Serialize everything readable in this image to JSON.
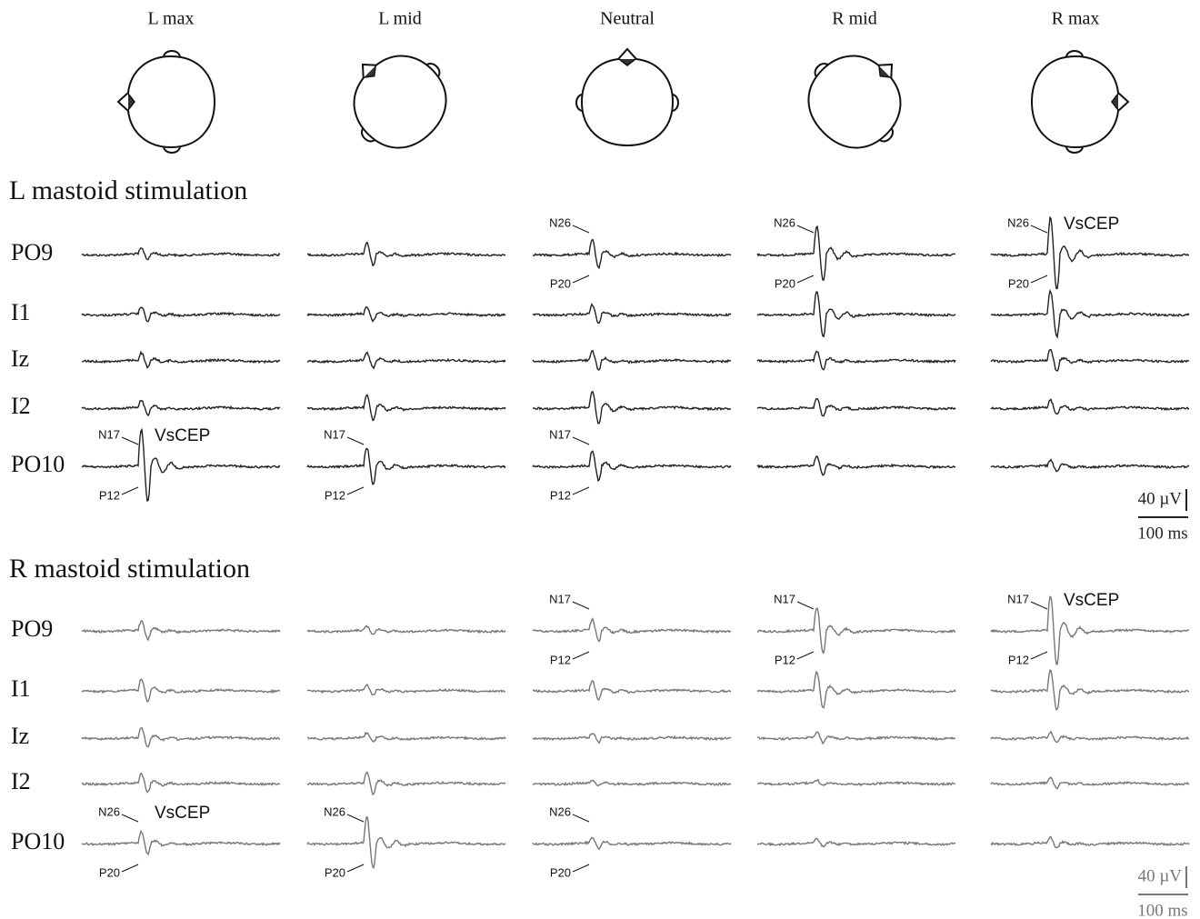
{
  "columns": [
    "L max",
    "L mid",
    "Neutral",
    "R mid",
    "R max"
  ],
  "sections": [
    {
      "title": "L mastoid stimulation",
      "channels": [
        "PO9",
        "I1",
        "Iz",
        "I2",
        "PO10"
      ],
      "peak_labels": [
        "N26",
        "P20",
        "N26",
        "P20",
        "N26",
        "VsCEP",
        "P20",
        "N17",
        "VsCEP",
        "P12",
        "N17",
        "P12",
        "N17",
        "P12"
      ],
      "scale": {
        "amplitude": "40 µV",
        "time": "100 ms"
      }
    },
    {
      "title": "R mastoid stimulation",
      "channels": [
        "PO9",
        "I1",
        "Iz",
        "I2",
        "PO10"
      ],
      "peak_labels": [
        "N17",
        "P12",
        "N17",
        "P12",
        "N17",
        "VsCEP",
        "P12",
        "N26",
        "VsCEP",
        "P20",
        "N26",
        "P20",
        "N26",
        "P20"
      ],
      "scale": {
        "amplitude": "40 µV",
        "time": "100 ms"
      }
    }
  ]
}
